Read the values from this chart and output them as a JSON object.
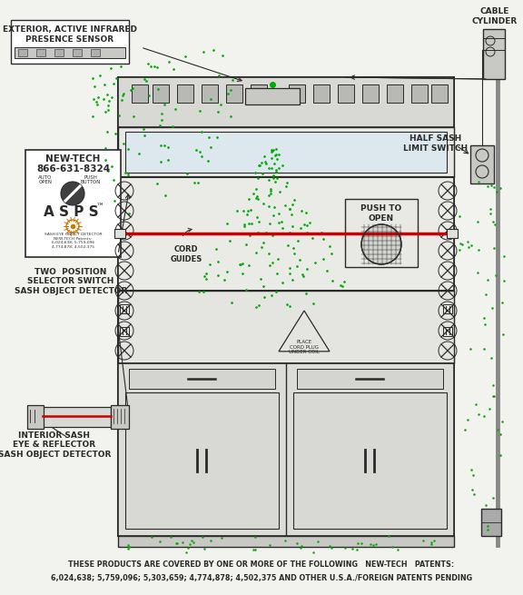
{
  "bg_color": "#f2f2ee",
  "line_color": "#2a2a2a",
  "green_dot_color": "#00aa00",
  "red_line_color": "#cc0000",
  "orange_color": "#cc7700",
  "fill_light": "#e0e0dc",
  "fill_med": "#d0d0cc",
  "fill_white": "#ffffff",
  "fill_gray": "#c0c0bc",
  "footer_line1": "THESE PRODUCTS ARE COVERED BY ONE OR MORE OF THE FOLLOWING   NEW-TECH   PATENTS:",
  "footer_line2": "6,024,638; 5,759,096; 5,303,659; 4,774,878; 4,502,375 AND OTHER U.S.A./FOREIGN PATENTS PENDING",
  "label_exterior": "EXTERIOR, ACTIVE INFRARED\nPRESENCE SENSOR",
  "label_cable": "CABLE\nCYLINDER",
  "label_half_sash": "HALF SASH\nLIMIT SWITCH",
  "label_two_pos": "TWO  POSITION\nSELECTOR SWITCH\nSASH OBJECT DETECTOR",
  "label_interior": "INTERIOR SASH\nEYE & REFLECTOR\nSASH OBJECT DETECTOR",
  "label_cord": "CORD\nGUIDES",
  "label_push": "PUSH TO\nOPEN",
  "newtech_line1": "NEW-TECH",
  "newtech_line2": "866-631-8324",
  "asps_text": "A S P S",
  "patents_small": "SASH EYE OBJECT DETECTOR\nNEW-TECH Patents:\n6,024,638; 5,759,096\n4,774,878; 4,502,375"
}
